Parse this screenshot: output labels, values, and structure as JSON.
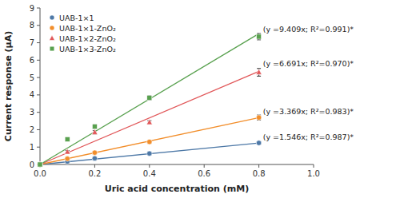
{
  "chart_data": {
    "type": "scatter",
    "xlabel": "Uric acid concentration (mM)",
    "ylabel": "Current response (μA)",
    "xlim": [
      0.0,
      1.0
    ],
    "ylim": [
      0,
      9
    ],
    "xticks": [
      {
        "value": 0.0,
        "label": "0.0"
      },
      0.2,
      0.4,
      0.6,
      0.8,
      {
        "value": 1.0,
        "label": "1.0"
      }
    ],
    "yticks": [
      0,
      1,
      2,
      3,
      4,
      5,
      6,
      7,
      8,
      9
    ],
    "grid": false,
    "legend": "upper left",
    "series": [
      {
        "name": "UAB-1×1",
        "marker": "circle",
        "x": [
          0.0,
          0.1,
          0.2,
          0.4,
          0.8
        ],
        "values": [
          0.0,
          0.17,
          0.35,
          0.63,
          1.24
        ],
        "yerr": [
          0.0,
          0.02,
          0.02,
          0.03,
          0.07
        ],
        "fit_x": [
          0.0,
          0.8
        ],
        "fit_values": [
          0.0,
          1.2368
        ]
      },
      {
        "name": "UAB-1×1-ZnO₂",
        "marker": "circle",
        "x": [
          0.0,
          0.1,
          0.2,
          0.4,
          0.8
        ],
        "values": [
          0.0,
          0.33,
          0.68,
          1.3,
          2.7
        ],
        "yerr": [
          0.0,
          0.04,
          0.05,
          0.07,
          0.14
        ],
        "fit_x": [
          0.0,
          0.8
        ],
        "fit_values": [
          0.0,
          2.6952
        ]
      },
      {
        "name": "UAB-1×2-ZnO₂",
        "marker": "triangle",
        "x": [
          0.0,
          0.1,
          0.2,
          0.4,
          0.8
        ],
        "values": [
          0.0,
          0.72,
          1.85,
          2.42,
          5.3
        ],
        "yerr": [
          0.0,
          0.08,
          0.1,
          0.1,
          0.22
        ],
        "fit_x": [
          0.0,
          0.8
        ],
        "fit_values": [
          0.0,
          5.3528
        ]
      },
      {
        "name": "UAB-1×3-ZnO₂",
        "marker": "square",
        "x": [
          0.0,
          0.1,
          0.2,
          0.4,
          0.8
        ],
        "values": [
          0.0,
          1.45,
          2.18,
          3.83,
          7.35
        ],
        "yerr": [
          0.0,
          0.09,
          0.11,
          0.13,
          0.18
        ],
        "fit_x": [
          0.0,
          0.8
        ],
        "fit_values": [
          0.0,
          7.5272
        ]
      }
    ],
    "annotations": [
      {
        "text": "(y =9.409x; R²=0.991)*",
        "x": 0.815,
        "y": 7.6
      },
      {
        "text": "(y =6.691x; R²=0.970)*",
        "x": 0.815,
        "y": 5.65
      },
      {
        "text": "(y =3.369x; R²=0.983)*",
        "x": 0.815,
        "y": 2.9
      },
      {
        "text": "(y =1.546x; R²=0.987)*",
        "x": 0.815,
        "y": 1.42
      }
    ]
  }
}
